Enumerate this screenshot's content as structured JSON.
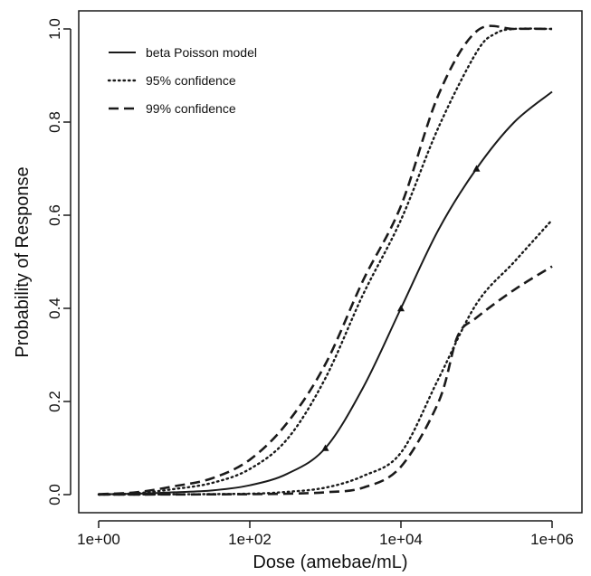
{
  "chart_data": {
    "type": "line",
    "title": "",
    "xlabel": "Dose (amebae/mL)",
    "ylabel": "Probability of Response",
    "x_scale": "log10",
    "xlim": [
      1,
      1000000
    ],
    "ylim": [
      0,
      1
    ],
    "grid": false,
    "legend_position": "top-left",
    "x_ticks": [
      "1e+00",
      "1e+02",
      "1e+04",
      "1e+06"
    ],
    "y_ticks": [
      "0.0",
      "0.2",
      "0.4",
      "0.6",
      "0.8",
      "1.0"
    ],
    "x_tick_values": [
      1,
      100,
      10000,
      1000000
    ],
    "y_tick_values": [
      0,
      0.2,
      0.4,
      0.6,
      0.8,
      1.0
    ],
    "legend": [
      {
        "label": "beta Poisson model",
        "style": "solid"
      },
      {
        "label": "95% confidence",
        "style": "dotted"
      },
      {
        "label": "99% confidence",
        "style": "dashed"
      }
    ],
    "series": [
      {
        "name": "beta Poisson model",
        "style": "solid",
        "x": [
          1,
          3.16,
          10,
          31.6,
          100,
          316,
          1000,
          3162,
          10000,
          31623,
          100000,
          316228,
          1000000
        ],
        "y": [
          0.0006,
          0.002,
          0.005,
          0.009,
          0.02,
          0.045,
          0.1,
          0.23,
          0.4,
          0.57,
          0.7,
          0.8,
          0.865
        ]
      },
      {
        "name": "95% confidence",
        "style": "dotted",
        "bound": "upper",
        "x": [
          1,
          3.16,
          10,
          31.6,
          100,
          316,
          1000,
          3162,
          10000,
          31623,
          100000,
          177828,
          316228,
          1000000
        ],
        "y": [
          0.0008,
          0.003,
          0.012,
          0.025,
          0.055,
          0.12,
          0.25,
          0.43,
          0.59,
          0.79,
          0.95,
          0.99,
          1.0,
          1.0
        ]
      },
      {
        "name": "95% confidence",
        "style": "dotted",
        "bound": "lower",
        "x": [
          1,
          10,
          100,
          316,
          1000,
          3162,
          10000,
          31623,
          100000,
          316228,
          1000000
        ],
        "y": [
          0,
          0.0006,
          0.002,
          0.006,
          0.015,
          0.04,
          0.09,
          0.25,
          0.41,
          0.5,
          0.59
        ]
      },
      {
        "name": "99% confidence",
        "style": "dashed",
        "bound": "upper",
        "x": [
          1,
          3.16,
          10,
          31.6,
          100,
          316,
          1000,
          3162,
          10000,
          31623,
          100000,
          316228,
          1000000
        ],
        "y": [
          0.001,
          0.005,
          0.018,
          0.035,
          0.075,
          0.155,
          0.28,
          0.46,
          0.62,
          0.86,
          0.995,
          1.0,
          1.0
        ]
      },
      {
        "name": "99% confidence",
        "style": "dashed",
        "bound": "lower",
        "x": [
          1,
          10,
          100,
          316,
          1000,
          3162,
          10000,
          31623,
          56234,
          100000,
          316228,
          1000000
        ],
        "y": [
          0,
          0.0003,
          0.001,
          0.002,
          0.005,
          0.015,
          0.06,
          0.2,
          0.34,
          0.38,
          0.44,
          0.49
        ]
      }
    ],
    "observed_points": {
      "x": [
        1000,
        10000,
        100000
      ],
      "y": [
        0.1,
        0.4,
        0.7
      ]
    }
  }
}
